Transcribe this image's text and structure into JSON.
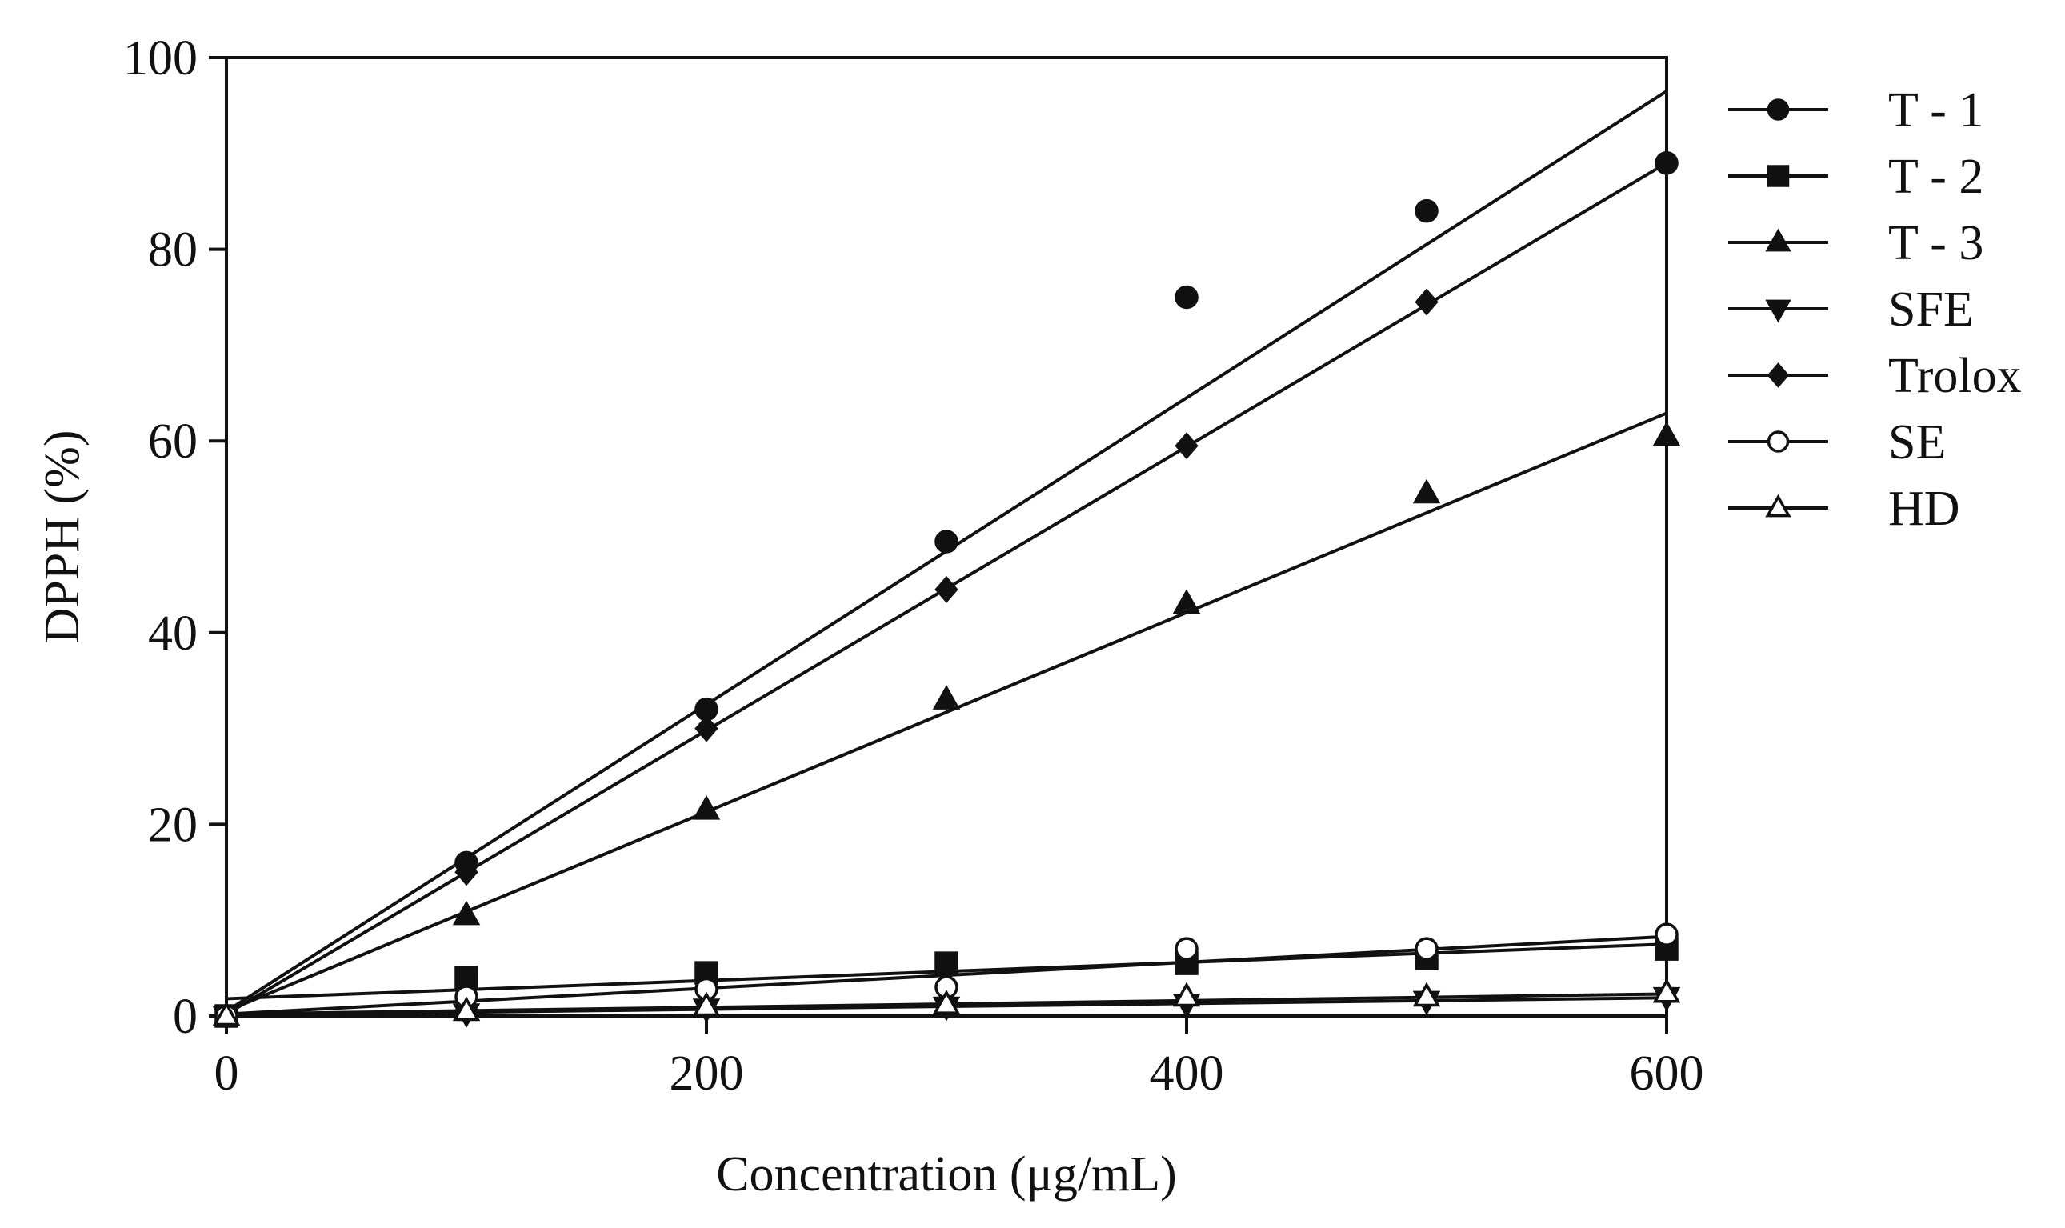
{
  "chart_data": {
    "type": "scatter",
    "title": "",
    "xlabel": "Concentration (μg/mL)",
    "ylabel": "DPPH  (%)",
    "xlim": [
      0,
      600
    ],
    "ylim": [
      0,
      100
    ],
    "x_ticks": [
      0,
      200,
      400,
      600
    ],
    "y_ticks": [
      0,
      20,
      40,
      60,
      80,
      100
    ],
    "x_tick_labels": [
      "0",
      "200",
      "400",
      "600"
    ],
    "y_tick_labels": [
      "0",
      "20",
      "40",
      "60",
      "80",
      "100"
    ],
    "grid": false,
    "legend_position": "right",
    "x": [
      0,
      100,
      200,
      300,
      400,
      500,
      600
    ],
    "series": [
      {
        "name": "T - 1",
        "marker": "filled-circle",
        "values": [
          0,
          16,
          32,
          49.5,
          75,
          84,
          89
        ],
        "fit": {
          "intercept": 0.5,
          "slope": 0.16
        }
      },
      {
        "name": "T - 2",
        "marker": "filled-square",
        "values": [
          0,
          4,
          4.5,
          5.5,
          5.5,
          6,
          7
        ],
        "fit": {
          "intercept": 1.8,
          "slope": 0.0095
        }
      },
      {
        "name": "T - 3",
        "marker": "filled-triangle-up",
        "values": [
          0,
          10.5,
          21.5,
          33,
          43,
          54.5,
          60.5
        ],
        "fit": {
          "intercept": 0.5,
          "slope": 0.104
        }
      },
      {
        "name": "SFE",
        "marker": "filled-triangle-down",
        "values": [
          0,
          0.3,
          0.8,
          1,
          1.3,
          1.6,
          2
        ],
        "fit": {
          "intercept": 0.1,
          "slope": 0.003
        }
      },
      {
        "name": "Trolox",
        "marker": "filled-diamond",
        "values": [
          0,
          15,
          30,
          44.5,
          59.5,
          74.5,
          89
        ],
        "fit": {
          "intercept": 0.2,
          "slope": 0.148
        }
      },
      {
        "name": "SE",
        "marker": "open-circle",
        "values": [
          0,
          2,
          2.8,
          3,
          7,
          7,
          8.5
        ],
        "fit": {
          "intercept": 0.2,
          "slope": 0.0135
        }
      },
      {
        "name": "HD",
        "marker": "open-triangle-up",
        "values": [
          0,
          0.5,
          1,
          1.2,
          2,
          2,
          2.4
        ],
        "fit": {
          "intercept": 0.2,
          "slope": 0.0035
        }
      }
    ]
  }
}
